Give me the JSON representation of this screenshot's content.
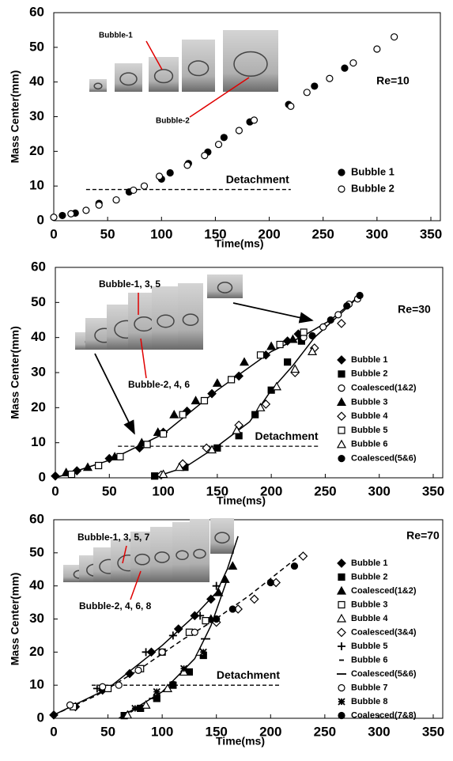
{
  "chart_data": [
    {
      "type": "scatter",
      "xlabel": "Time(ms)",
      "ylabel": "Mass Center(mm)",
      "xlim": [
        0,
        350
      ],
      "ylim": [
        0,
        60
      ],
      "xticks": [
        0,
        50,
        100,
        150,
        200,
        250,
        300,
        350
      ],
      "yticks": [
        0,
        10,
        20,
        30,
        40,
        50,
        60
      ],
      "annotations": [
        "Re=10",
        "Bubble-1",
        "Bubble-2"
      ],
      "reference_line": {
        "label": "Detachment",
        "y": 9,
        "x": [
          30,
          220
        ],
        "style": "dashed"
      },
      "curves": [],
      "series": [
        {
          "name": "Bubble 1",
          "color": "#000000",
          "marker": "circle",
          "filled": true,
          "x": [
            8,
            20,
            42,
            70,
            100,
            108,
            125,
            143,
            158,
            182,
            218,
            242,
            270
          ],
          "values": [
            1.5,
            2.2,
            5,
            8.3,
            12,
            13.8,
            16.5,
            19.8,
            24,
            28.5,
            33.5,
            38.8,
            44
          ]
        },
        {
          "name": "Bubble 2",
          "color": "#000000",
          "marker": "circle",
          "filled": false,
          "x": [
            0,
            16,
            30,
            42,
            58,
            74,
            84,
            98,
            124,
            140,
            153,
            172,
            186,
            220,
            235,
            256,
            278,
            300,
            316
          ],
          "values": [
            1,
            2,
            3,
            4.5,
            6,
            8.8,
            10,
            12.8,
            16,
            18.8,
            22,
            26,
            29,
            33,
            37,
            41,
            45.5,
            49.5,
            53
          ]
        }
      ]
    },
    {
      "type": "scatter",
      "xlabel": "Time(ms)",
      "ylabel": "Mass Center(mm)",
      "xlim": [
        0,
        350
      ],
      "ylim": [
        0,
        60
      ],
      "xticks": [
        0,
        50,
        100,
        150,
        200,
        250,
        300,
        350
      ],
      "yticks": [
        0,
        10,
        20,
        30,
        40,
        50,
        60
      ],
      "annotations": [
        "Re=30",
        "Bubble-1, 3, 5",
        "Bubble-2, 4, 6"
      ],
      "reference_line": {
        "label": "Detachment",
        "y": 9,
        "x": [
          58,
          245
        ],
        "style": "dashed"
      },
      "curves": [
        {
          "style": "solid",
          "x": [
            0,
            50,
            100,
            150,
            200,
            230,
            255,
            282
          ],
          "values": [
            0,
            5,
            12.5,
            25,
            36,
            40.5,
            45,
            52
          ]
        },
        {
          "style": "solid",
          "x": [
            90,
            120,
            150,
            180,
            200,
            220,
            240,
            265,
            282
          ],
          "values": [
            0,
            3,
            9,
            16,
            25,
            32,
            40,
            47,
            52
          ]
        }
      ],
      "series": [
        {
          "name": "Bubble 1",
          "color": "#000000",
          "marker": "diamond",
          "filled": true,
          "x": [
            0,
            20,
            50,
            78,
            100,
            122,
            145,
            170,
            195,
            215,
            225
          ],
          "values": [
            0.5,
            2,
            5.5,
            8.5,
            13,
            19,
            24,
            29,
            35,
            39,
            41
          ]
        },
        {
          "name": "Bubble 2",
          "color": "#000000",
          "marker": "square",
          "filled": true,
          "x": [
            92,
            120,
            150,
            170,
            185,
            200,
            215,
            228
          ],
          "values": [
            0.5,
            3,
            8.5,
            12,
            18,
            25,
            33,
            39
          ]
        },
        {
          "name": "Coalesced(1&2)",
          "color": "#000000",
          "marker": "circle",
          "filled": false,
          "x": [
            230,
            248,
            262,
            272,
            280
          ],
          "values": [
            40,
            43,
            46.5,
            49.5,
            51
          ]
        },
        {
          "name": "Bubble 3",
          "color": "#000000",
          "marker": "triangle",
          "filled": true,
          "x": [
            10,
            30,
            55,
            80,
            95,
            110,
            130,
            150,
            175,
            200,
            220
          ],
          "values": [
            1.5,
            3,
            6,
            10,
            13,
            18,
            22,
            27,
            33,
            37.5,
            39.5
          ]
        },
        {
          "name": "Bubble 4",
          "color": "#000000",
          "marker": "diamond",
          "filled": false,
          "x": [
            98,
            118,
            140,
            170,
            195,
            222,
            240,
            265
          ],
          "values": [
            0.8,
            4,
            8.5,
            15,
            21,
            30,
            37,
            44
          ]
        },
        {
          "name": "Bubble 5",
          "color": "#000000",
          "marker": "square",
          "filled": false,
          "x": [
            15,
            40,
            60,
            85,
            100,
            118,
            138,
            163,
            190,
            208,
            230
          ],
          "values": [
            1,
            3.5,
            6,
            9.5,
            12.5,
            18,
            22,
            28,
            35,
            38,
            41.5
          ]
        },
        {
          "name": "Bubble 6",
          "color": "#000000",
          "marker": "triangle",
          "filled": false,
          "x": [
            100,
            115,
            145,
            168,
            190,
            205,
            222,
            238
          ],
          "values": [
            1,
            3,
            8,
            13.5,
            20,
            26,
            31,
            36
          ]
        },
        {
          "name": "Coalesced(5&6)",
          "color": "#000000",
          "marker": "circle",
          "filled": true,
          "x": [
            238,
            255,
            270,
            282
          ],
          "values": [
            40.5,
            45,
            49,
            52
          ]
        }
      ]
    },
    {
      "type": "scatter",
      "xlabel": "Time(ms)",
      "ylabel": "Mass Center(mm)",
      "xlim": [
        0,
        350
      ],
      "ylim": [
        0,
        60
      ],
      "xticks": [
        0,
        50,
        100,
        150,
        200,
        250,
        300,
        350
      ],
      "yticks": [
        0,
        10,
        20,
        30,
        40,
        50,
        60
      ],
      "annotations": [
        "Re=70",
        "Bubble-1, 3, 5, 7",
        "Bubble-2, 4, 6, 8"
      ],
      "reference_line": {
        "label": "Detachment",
        "y": 10,
        "x": [
          35,
          210
        ],
        "style": "dashed"
      },
      "curves": [
        {
          "style": "solid",
          "x": [
            0,
            50,
            100,
            130,
            150,
            160,
            170
          ],
          "values": [
            1,
            9,
            22,
            31,
            38,
            45,
            55
          ]
        },
        {
          "style": "solid",
          "x": [
            60,
            100,
            130,
            145,
            160
          ],
          "values": [
            0,
            8,
            18,
            28,
            42
          ]
        },
        {
          "style": "dashed",
          "x": [
            0,
            40,
            80,
            120,
            145,
            180,
            230
          ],
          "values": [
            1,
            7,
            15,
            24,
            29,
            37,
            50
          ]
        }
      ],
      "series": [
        {
          "name": "Bubble 1",
          "color": "#000000",
          "marker": "diamond",
          "filled": true,
          "x": [
            0,
            20,
            45,
            70,
            90,
            115,
            130,
            145
          ],
          "values": [
            1,
            3.5,
            8.5,
            13.5,
            20,
            27,
            31,
            36
          ]
        },
        {
          "name": "Bubble 2",
          "color": "#000000",
          "marker": "square",
          "filled": true,
          "x": [
            65,
            80,
            95,
            110,
            125,
            138
          ],
          "values": [
            0.8,
            3,
            6,
            10,
            14,
            19
          ]
        },
        {
          "name": "Coalesced(1&2)",
          "color": "#000000",
          "marker": "triangle",
          "filled": true,
          "x": [
            145,
            152,
            158,
            165
          ],
          "values": [
            30,
            38,
            42,
            46
          ]
        },
        {
          "name": "Bubble 3",
          "color": "#000000",
          "marker": "square",
          "filled": false,
          "x": [
            18,
            50,
            80,
            100,
            125,
            140
          ],
          "values": [
            3.5,
            9,
            15,
            20,
            26,
            29.5
          ]
        },
        {
          "name": "Bubble 4",
          "color": "#000000",
          "marker": "triangle",
          "filled": false,
          "x": [
            68,
            85,
            105,
            120,
            135
          ],
          "values": [
            1,
            4,
            9,
            14,
            20
          ]
        },
        {
          "name": "Coalesced(3&4)",
          "color": "#000000",
          "marker": "diamond",
          "filled": false,
          "x": [
            150,
            170,
            185,
            205,
            230
          ],
          "values": [
            29,
            33,
            36,
            41,
            49
          ]
        },
        {
          "name": "Bubble 5",
          "color": "#000000",
          "marker": "plus",
          "filled": false,
          "x": [
            40,
            85,
            110,
            135,
            150
          ],
          "values": [
            9,
            20,
            25,
            31,
            40
          ]
        },
        {
          "name": "Bubble 6",
          "color": "#000000",
          "marker": "dash",
          "filled": false,
          "x": [
            70,
            90,
            110
          ],
          "values": [
            2,
            6,
            11
          ]
        },
        {
          "name": "Coalesced(5&6)",
          "color": "#000000",
          "marker": "longdash",
          "filled": false,
          "x": [
            140,
            148
          ],
          "values": [
            24,
            30
          ]
        },
        {
          "name": "Bubble 7",
          "color": "#000000",
          "marker": "circle",
          "filled": false,
          "x": [
            15,
            45,
            60,
            78,
            100,
            130
          ],
          "values": [
            4,
            9.5,
            10,
            14.5,
            20,
            26
          ]
        },
        {
          "name": "Bubble 8",
          "color": "#000000",
          "marker": "asterisk",
          "filled": false,
          "x": [
            75,
            95,
            120,
            138
          ],
          "values": [
            3,
            8,
            15,
            20
          ]
        },
        {
          "name": "Coalesced(7&8)",
          "color": "#000000",
          "marker": "circle",
          "filled": true,
          "x": [
            150,
            165,
            200,
            222
          ],
          "values": [
            30,
            33,
            41,
            46
          ]
        }
      ]
    }
  ]
}
